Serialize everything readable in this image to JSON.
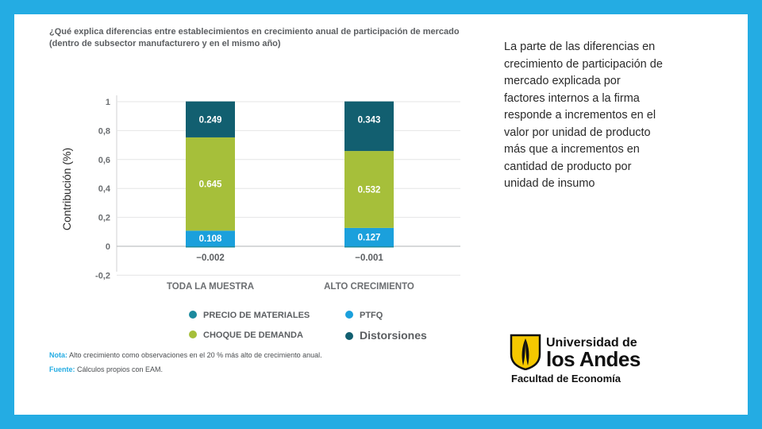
{
  "chart_data": {
    "type": "bar",
    "stacked": true,
    "title": "¿Qué explica diferencias entre establecimientos en crecimiento anual de participación de mercado (dentro de subsector manufacturero y en el mismo año)",
    "ylabel": "Contribución (%)",
    "ylim": [
      -0.2,
      1
    ],
    "yticks": [
      "1",
      "0,8",
      "0,6",
      "0,4",
      "0,2",
      "0",
      "-0,2"
    ],
    "ytick_values": [
      1,
      0.8,
      0.6,
      0.4,
      0.2,
      0,
      -0.2
    ],
    "categories": [
      "TODA LA MUESTRA",
      "ALTO CRECIMIENTO"
    ],
    "series": [
      {
        "name": "PRECIO DE MATERIALES",
        "values": [
          -0.002,
          -0.001
        ],
        "labels": [
          "−0.002",
          "−0.001"
        ],
        "color": "#1c8a9e"
      },
      {
        "name": "PTFQ",
        "values": [
          0.108,
          0.127
        ],
        "labels": [
          "0.108",
          "0.127"
        ],
        "color": "#1ba0dc"
      },
      {
        "name": "CHOQUE DE DEMANDA",
        "values": [
          0.645,
          0.532
        ],
        "labels": [
          "0.645",
          "0.532"
        ],
        "color": "#a6bf3a"
      },
      {
        "name": "Distorsiones",
        "values": [
          0.249,
          0.343
        ],
        "labels": [
          "0.249",
          "0.343"
        ],
        "color": "#125f70"
      }
    ],
    "legend": [
      {
        "name": "PRECIO DE MATERIALES",
        "color": "#1c8a9e"
      },
      {
        "name": "PTFQ",
        "color": "#1ba0dc"
      },
      {
        "name": "CHOQUE DE DEMANDA",
        "color": "#a6bf3a"
      },
      {
        "name": "Distorsiones",
        "color": "#125f70"
      }
    ],
    "grid": true
  },
  "note": {
    "label": "Nota:",
    "text": " Alto crecimiento como observaciones en el 20 % más alto de crecimiento anual."
  },
  "source": {
    "label": "Fuente:",
    "text": " Cálculos propios con EAM."
  },
  "side_text": "La parte de las diferencias en crecimiento de participación de mercado explicada por factores internos a la firma responde a incrementos en el valor por unidad de producto más que a incrementos en cantidad de producto por unidad de insumo",
  "logo": {
    "line1": "Universidad de",
    "line2": "los Andes",
    "line3": "Facultad de Economía"
  }
}
